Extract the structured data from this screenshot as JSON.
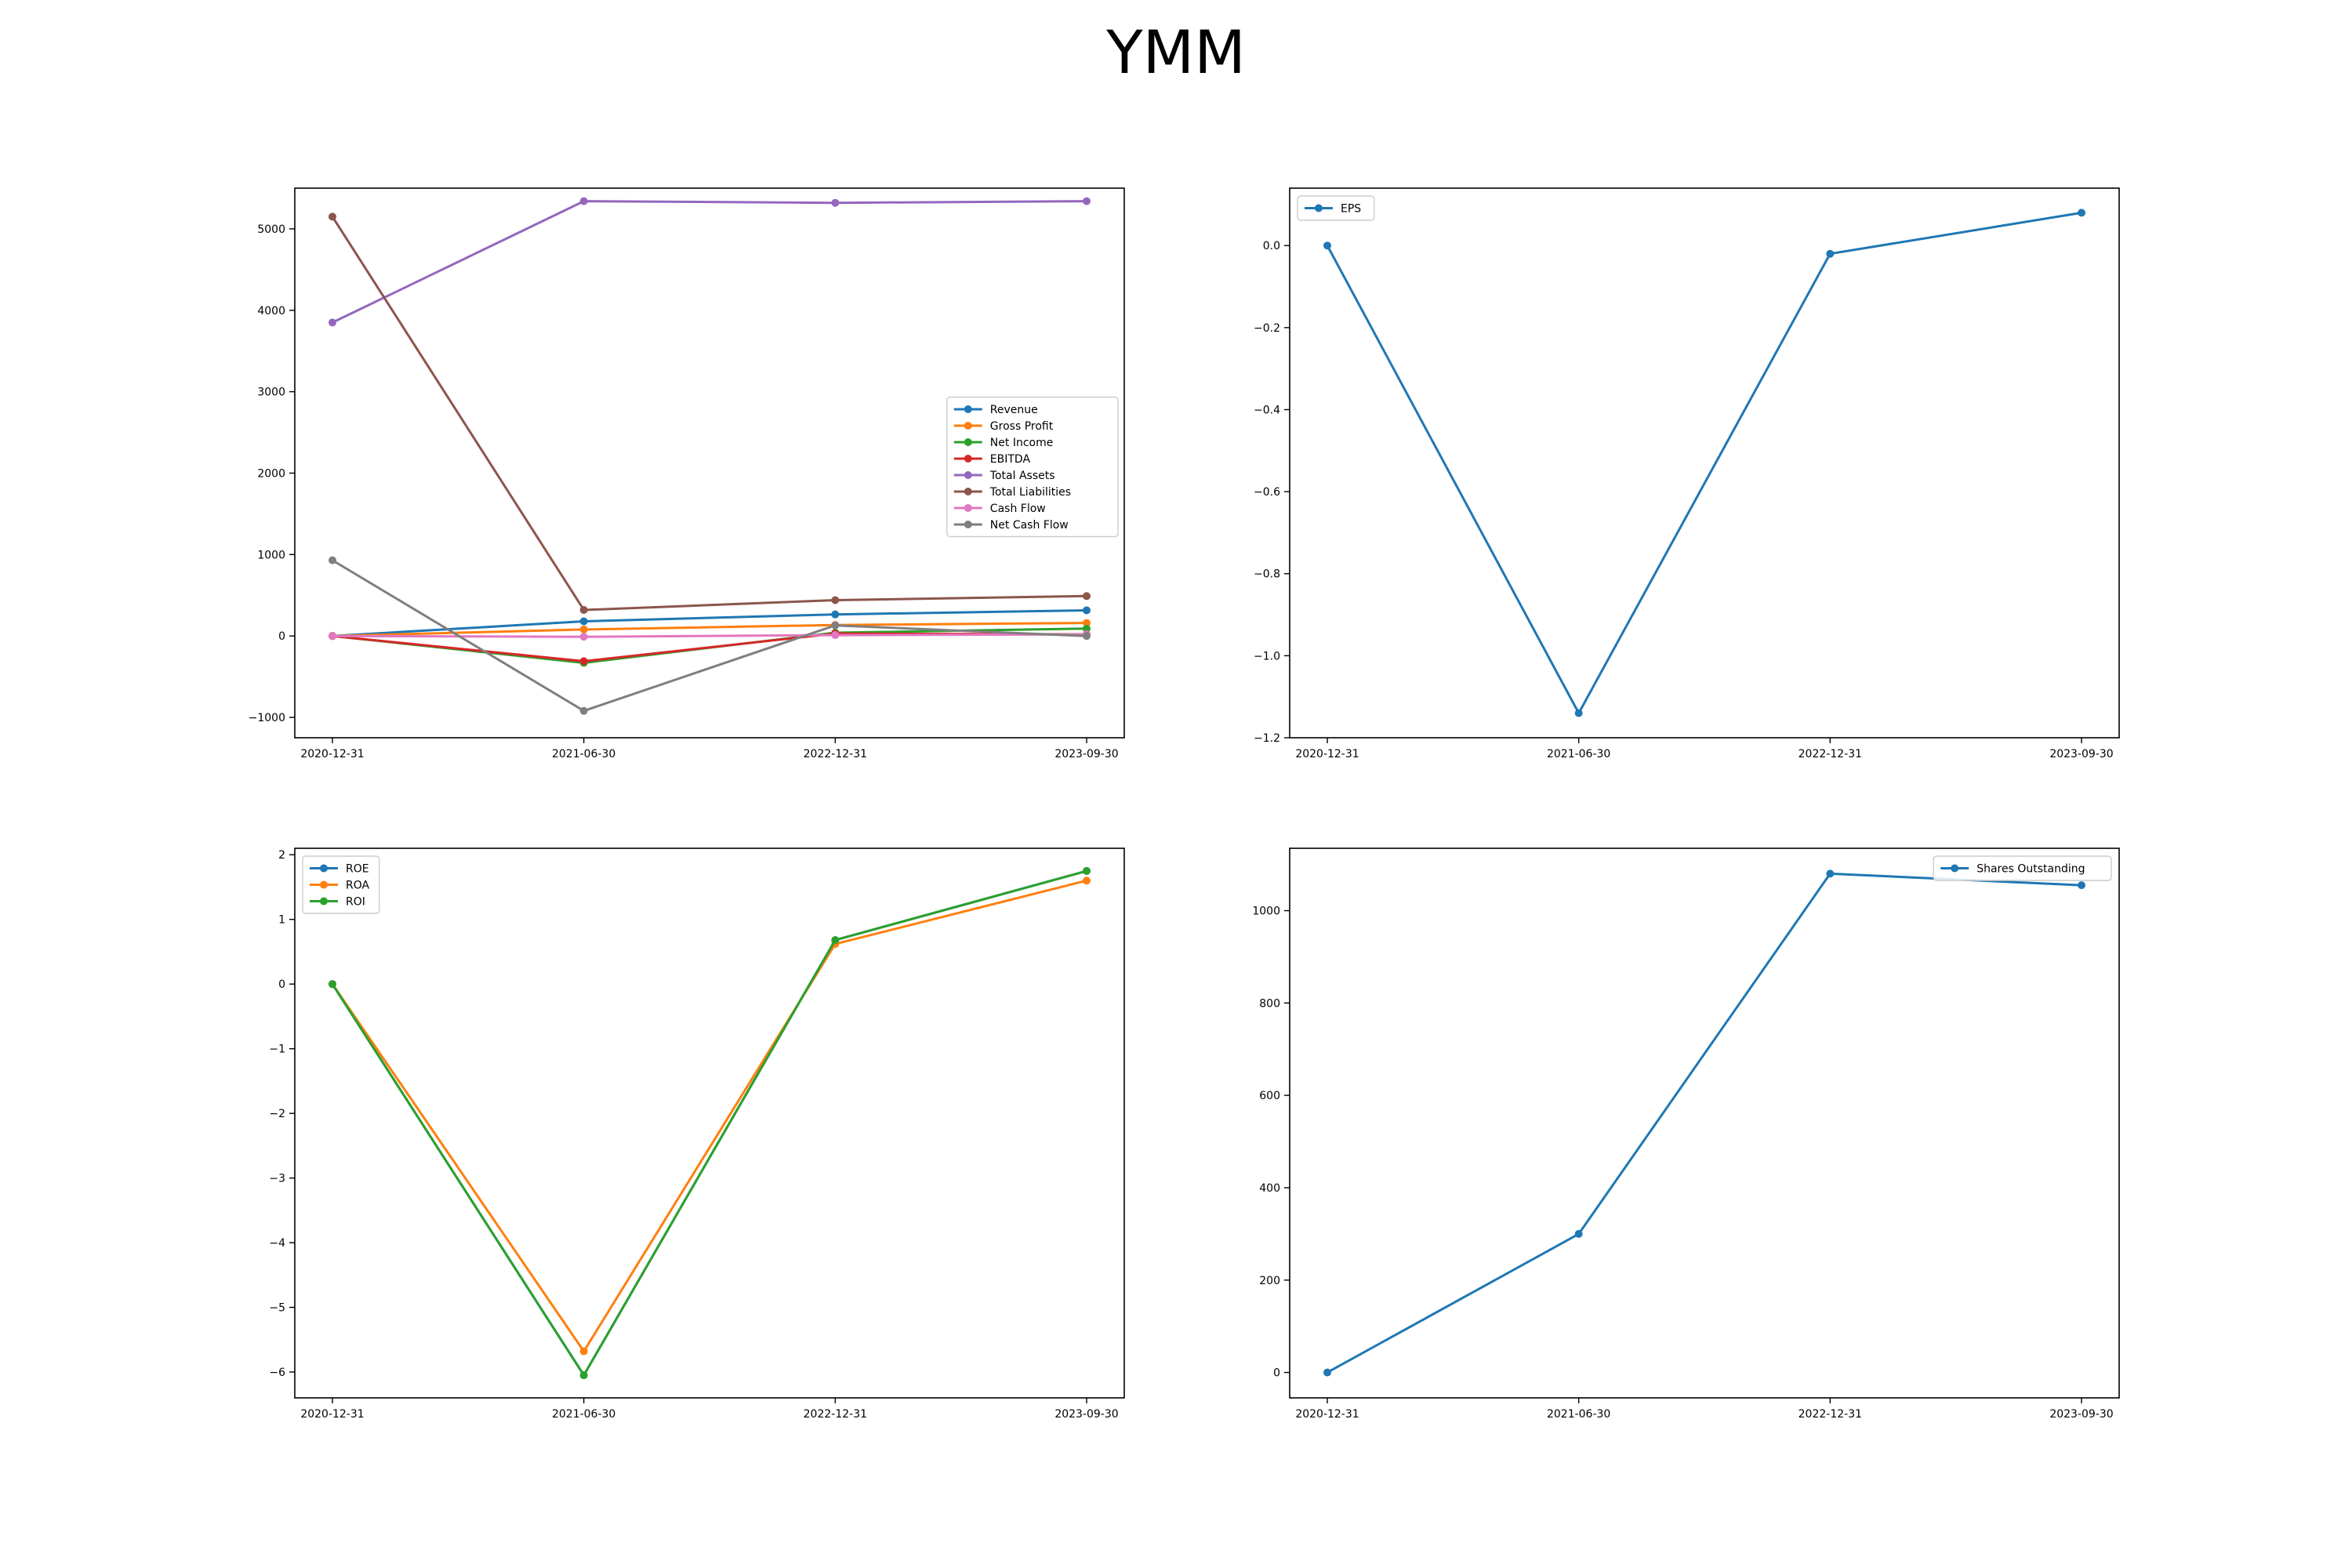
{
  "figure": {
    "title": "YMM"
  },
  "chart_data": [
    {
      "type": "line",
      "categories": [
        "2020-12-31",
        "2021-06-30",
        "2022-12-31",
        "2023-09-30"
      ],
      "ylim": [
        -1250,
        5500
      ],
      "yticks": [
        -1000,
        0,
        1000,
        2000,
        3000,
        4000,
        5000
      ],
      "ytick_labels": [
        "−1000",
        "0",
        "1000",
        "2000",
        "3000",
        "4000",
        "5000"
      ],
      "legend": "center-right",
      "grid": false,
      "series": [
        {
          "name": "Revenue",
          "color": "#1f77b4",
          "values": [
            0,
            180,
            265,
            315
          ]
        },
        {
          "name": "Gross Profit",
          "color": "#ff7f0e",
          "values": [
            0,
            80,
            135,
            160
          ]
        },
        {
          "name": "Net Income",
          "color": "#2ca02c",
          "values": [
            0,
            -330,
            40,
            90
          ]
        },
        {
          "name": "EBITDA",
          "color": "#d62728",
          "values": [
            0,
            -310,
            30,
            20
          ]
        },
        {
          "name": "Total Assets",
          "color": "#9467bd",
          "values": [
            3850,
            5340,
            5320,
            5340
          ]
        },
        {
          "name": "Total Liabilities",
          "color": "#8c564b",
          "values": [
            5150,
            320,
            440,
            490
          ]
        },
        {
          "name": "Cash Flow",
          "color": "#e377c2",
          "values": [
            0,
            -10,
            10,
            20
          ]
        },
        {
          "name": "Net Cash Flow",
          "color": "#7f7f7f",
          "values": [
            930,
            -920,
            130,
            0
          ]
        }
      ]
    },
    {
      "type": "line",
      "categories": [
        "2020-12-31",
        "2021-06-30",
        "2022-12-31",
        "2023-09-30"
      ],
      "ylim": [
        -1.2,
        0.14
      ],
      "yticks": [
        -1.2,
        -1.0,
        -0.8,
        -0.6,
        -0.4,
        -0.2,
        0.0
      ],
      "ytick_labels": [
        "−1.2",
        "−1.0",
        "−0.8",
        "−0.6",
        "−0.4",
        "−0.2",
        "0.0"
      ],
      "legend": "upper-left",
      "grid": false,
      "series": [
        {
          "name": "EPS",
          "color": "#1f77b4",
          "values": [
            0.0,
            -1.14,
            -0.02,
            0.08
          ]
        }
      ]
    },
    {
      "type": "line",
      "categories": [
        "2020-12-31",
        "2021-06-30",
        "2022-12-31",
        "2023-09-30"
      ],
      "ylim": [
        -6.4,
        2.1
      ],
      "yticks": [
        -6,
        -5,
        -4,
        -3,
        -2,
        -1,
        0,
        1,
        2
      ],
      "ytick_labels": [
        "−6",
        "−5",
        "−4",
        "−3",
        "−2",
        "−1",
        "0",
        "1",
        "2"
      ],
      "legend": "upper-left",
      "grid": false,
      "series": [
        {
          "name": "ROE",
          "color": "#1f77b4",
          "values": [
            0,
            -6.05,
            0.68,
            1.75
          ]
        },
        {
          "name": "ROA",
          "color": "#ff7f0e",
          "values": [
            0,
            -5.68,
            0.62,
            1.6
          ]
        },
        {
          "name": "ROI",
          "color": "#2ca02c",
          "values": [
            0,
            -6.05,
            0.68,
            1.75
          ]
        }
      ]
    },
    {
      "type": "line",
      "categories": [
        "2020-12-31",
        "2021-06-30",
        "2022-12-31",
        "2023-09-30"
      ],
      "ylim": [
        -55,
        1135
      ],
      "yticks": [
        0,
        200,
        400,
        600,
        800,
        1000
      ],
      "ytick_labels": [
        "0",
        "200",
        "400",
        "600",
        "800",
        "1000"
      ],
      "legend": "upper-right",
      "grid": false,
      "series": [
        {
          "name": "Shares Outstanding",
          "color": "#1f77b4",
          "values": [
            0,
            300,
            1080,
            1055
          ]
        }
      ]
    }
  ]
}
